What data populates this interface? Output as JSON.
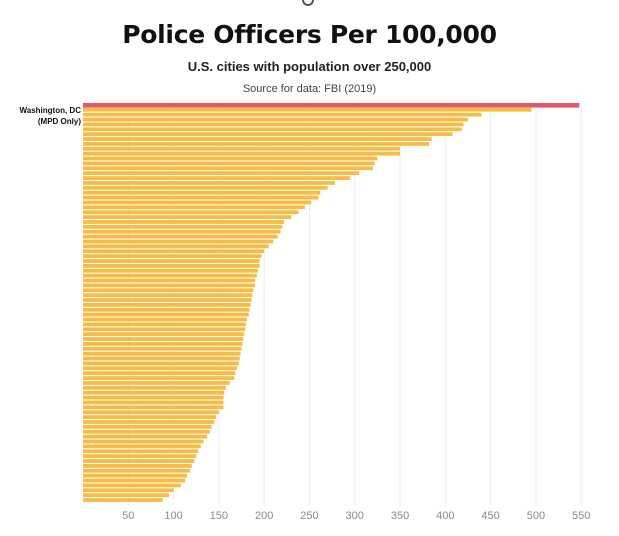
{
  "title": "Police Officers Per 100,000",
  "subtitle": "U.S. cities with population over 250,000",
  "source": "Source for data: FBI (2019)",
  "chart_data": {
    "type": "bar",
    "orientation": "horizontal",
    "grid": true,
    "xlim": [
      0,
      550
    ],
    "xticks": [
      50,
      100,
      150,
      200,
      250,
      300,
      350,
      400,
      450,
      500,
      550
    ],
    "highlight": {
      "label": "Washington, DC",
      "label_sub": "(MPD Only)",
      "value": 548,
      "color": "#e0596b"
    },
    "bar_color": "#f6bc45",
    "values": [
      495,
      440,
      425,
      420,
      418,
      408,
      385,
      382,
      350,
      350,
      325,
      322,
      320,
      305,
      295,
      278,
      270,
      262,
      260,
      252,
      245,
      238,
      230,
      222,
      220,
      218,
      215,
      210,
      205,
      200,
      197,
      195,
      195,
      193,
      192,
      190,
      190,
      188,
      187,
      186,
      185,
      184,
      183,
      181,
      180,
      179,
      178,
      177,
      176,
      175,
      174,
      173,
      172,
      170,
      168,
      167,
      162,
      158,
      156,
      155,
      155,
      155,
      150,
      147,
      145,
      142,
      140,
      137,
      133,
      130,
      127,
      125,
      123,
      120,
      118,
      115,
      113,
      108,
      100,
      95,
      88
    ]
  }
}
